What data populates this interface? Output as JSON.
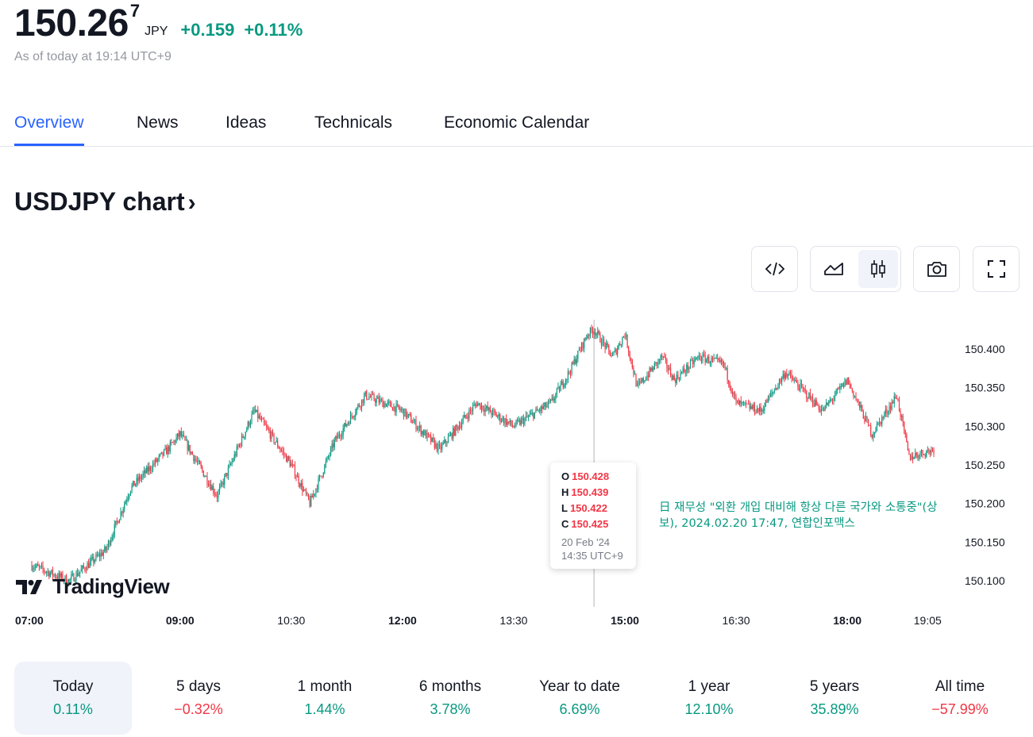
{
  "quote": {
    "price_main": "150.26",
    "price_sup": "7",
    "currency": "JPY",
    "change": "+0.159",
    "change_pct": "+0.11%",
    "as_of": "As of today at 19:14 UTC+9",
    "change_color": "#089981"
  },
  "tabs": [
    {
      "label": "Overview",
      "active": true
    },
    {
      "label": "News",
      "active": false
    },
    {
      "label": "Ideas",
      "active": false
    },
    {
      "label": "Technicals",
      "active": false
    },
    {
      "label": "Economic Calendar",
      "active": false
    }
  ],
  "chart_section": {
    "title": "USDJPY chart",
    "chevron": "›"
  },
  "toolbar": {
    "embed_icon": "code-icon",
    "line_icon": "area-chart-icon",
    "candle_icon": "candlestick-icon",
    "snapshot_icon": "camera-icon",
    "fullscreen_icon": "fullscreen-icon",
    "active_style": "candles"
  },
  "tooltip": {
    "o_label": "O",
    "o_value": "150.428",
    "h_label": "H",
    "h_value": "150.439",
    "l_label": "L",
    "l_value": "150.422",
    "c_label": "C",
    "c_value": "150.425",
    "date": "20 Feb '24",
    "time": "14:35 UTC+9"
  },
  "news_note": "日 재무성 \"외환 개입 대비해 항상 다른 국가와 소통중\"(상보), 2024.02.20 17:47, 연합인포맥스",
  "logo": {
    "text": "TradingView"
  },
  "chart_data": {
    "type": "candlestick",
    "title": "",
    "x_tick_labels": [
      "07:00",
      "09:00",
      "10:30",
      "12:00",
      "13:30",
      "15:00",
      "16:30",
      "18:00",
      "19:05"
    ],
    "y_tick_labels": [
      "150.400",
      "150.350",
      "150.300",
      "150.250",
      "150.200",
      "150.150",
      "150.100"
    ],
    "ylim": [
      150.075,
      150.44
    ],
    "x_time_range": [
      "07:00",
      "19:10"
    ],
    "interval_minutes": 1,
    "up_color": "#089981",
    "down_color": "#f23645",
    "path_keypoints": {
      "time": [
        "07:00",
        "07:30",
        "08:00",
        "08:20",
        "08:50",
        "09:00",
        "09:30",
        "10:00",
        "10:30",
        "10:45",
        "11:05",
        "11:30",
        "12:00",
        "12:30",
        "13:00",
        "13:30",
        "14:00",
        "14:15",
        "14:30",
        "14:35",
        "14:50",
        "15:00",
        "15:10",
        "15:30",
        "15:40",
        "16:00",
        "16:20",
        "16:30",
        "16:50",
        "17:10",
        "17:40",
        "18:00",
        "18:20",
        "18:40",
        "18:50",
        "19:10"
      ],
      "close": [
        150.12,
        150.1,
        150.14,
        150.22,
        150.27,
        150.29,
        150.21,
        150.32,
        150.25,
        150.2,
        150.28,
        150.34,
        150.32,
        150.27,
        150.33,
        150.3,
        150.33,
        150.37,
        150.42,
        150.425,
        150.39,
        150.42,
        150.35,
        150.39,
        150.36,
        150.39,
        150.38,
        150.33,
        150.32,
        150.37,
        150.32,
        150.36,
        150.29,
        150.34,
        150.26,
        150.27
      ]
    },
    "grid": false
  },
  "periods": [
    {
      "label": "Today",
      "value": "0.11%",
      "sign": "pos",
      "active": true
    },
    {
      "label": "5 days",
      "value": "−0.32%",
      "sign": "neg",
      "active": false
    },
    {
      "label": "1 month",
      "value": "1.44%",
      "sign": "pos",
      "active": false
    },
    {
      "label": "6 months",
      "value": "3.78%",
      "sign": "pos",
      "active": false
    },
    {
      "label": "Year to date",
      "value": "6.69%",
      "sign": "pos",
      "active": false
    },
    {
      "label": "1 year",
      "value": "12.10%",
      "sign": "pos",
      "active": false
    },
    {
      "label": "5 years",
      "value": "35.89%",
      "sign": "pos",
      "active": false
    },
    {
      "label": "All time",
      "value": "−57.99%",
      "sign": "neg",
      "active": false
    }
  ]
}
